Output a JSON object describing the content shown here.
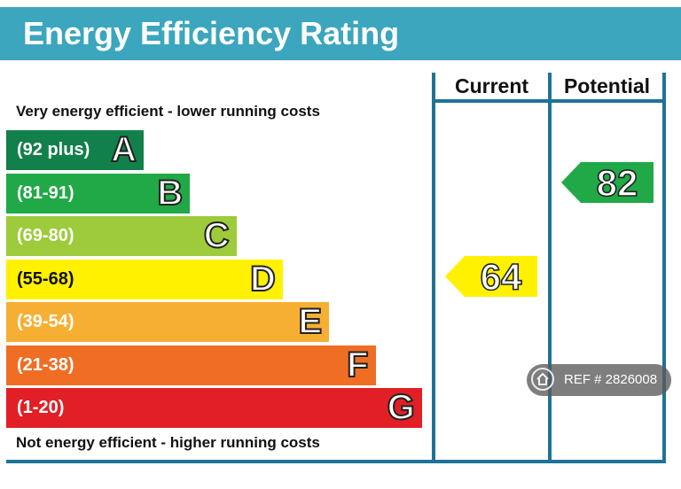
{
  "header": {
    "title": "Energy Efficiency Rating"
  },
  "captions": {
    "top": "Very energy efficient - lower running costs",
    "bottom": "Not energy efficient - higher running costs"
  },
  "columns": {
    "current": "Current",
    "potential": "Potential"
  },
  "chart_data": {
    "type": "table",
    "title": "Energy Efficiency Rating",
    "bands": [
      {
        "letter": "A",
        "range": "(92 plus)",
        "color": "#12804a"
      },
      {
        "letter": "B",
        "range": "(81-91)",
        "color": "#20a946"
      },
      {
        "letter": "C",
        "range": "(69-80)",
        "color": "#9dcb3c"
      },
      {
        "letter": "D",
        "range": "(55-68)",
        "color": "#fff100"
      },
      {
        "letter": "E",
        "range": "(39-54)",
        "color": "#f7af33"
      },
      {
        "letter": "F",
        "range": "(21-38)",
        "color": "#ef6e24"
      },
      {
        "letter": "G",
        "range": "(1-20)",
        "color": "#e21f26"
      }
    ],
    "ratings": [
      {
        "label": "Current",
        "value": 64,
        "band": "D",
        "color": "#fff100"
      },
      {
        "label": "Potential",
        "value": 82,
        "band": "B",
        "color": "#20a946"
      }
    ]
  },
  "watermark": {
    "text": "REF # 2826008",
    "icon": "home-icon"
  }
}
